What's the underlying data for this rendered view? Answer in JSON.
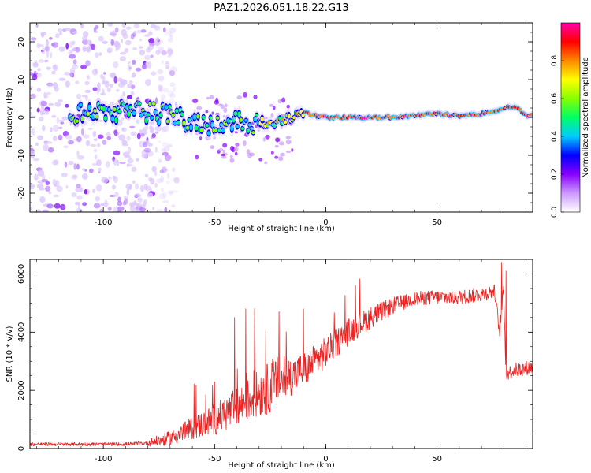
{
  "title": "PAZ1.2026.051.18.22.G13",
  "chart_data": [
    {
      "type": "heatmap",
      "name": "spectrogram",
      "xlabel": "Height of straight line (km)",
      "ylabel": "Frequency (Hz)",
      "xlim": [
        -133,
        93
      ],
      "ylim": [
        -25,
        25
      ],
      "xticks": [
        -100,
        -50,
        0,
        50
      ],
      "yticks": [
        -20,
        -10,
        0,
        10,
        20
      ],
      "xtick_labels": [
        "-100",
        "-50",
        "0",
        "50"
      ],
      "ytick_labels": [
        "-20",
        "-10",
        "0",
        "10",
        "20"
      ],
      "colorbar": {
        "label": "Normalized spectral amplitude",
        "range": [
          0,
          1
        ],
        "ticks": [
          0.0,
          0.2,
          0.4,
          0.6,
          0.8
        ],
        "tick_labels": [
          "0.0",
          "0.2",
          "0.4",
          "0.6",
          "0.8"
        ],
        "colors": [
          "#ffffff",
          "#cc99ff",
          "#8800ff",
          "#0000ff",
          "#00ccff",
          "#00ff66",
          "#88ff00",
          "#ffff00",
          "#ff8800",
          "#ff0000",
          "#ff00aa"
        ]
      },
      "ridge_frequency": {
        "x": [
          -115,
          -100,
          -80,
          -70,
          -60,
          -50,
          -45,
          -40,
          -35,
          -30,
          -25,
          -20,
          -15,
          -10,
          -5,
          0,
          10,
          20,
          30,
          40,
          50,
          60,
          70,
          75,
          80,
          85,
          90
        ],
        "y": [
          1,
          1.5,
          1.5,
          0.5,
          -1,
          -2,
          -1,
          -1,
          -2,
          -1,
          -2,
          -1,
          0,
          1.5,
          0.5,
          0,
          0,
          0,
          0,
          0.5,
          1,
          0.5,
          1,
          1.5,
          2.5,
          3,
          0.5
        ]
      },
      "noise_region_x": [
        -133,
        -75
      ]
    },
    {
      "type": "line",
      "name": "snr",
      "xlabel": "Height of straight line (km)",
      "ylabel": "SNR (10 * v/v)",
      "xlim": [
        -133,
        93
      ],
      "ylim": [
        0,
        6500
      ],
      "xticks": [
        -100,
        -50,
        0,
        50
      ],
      "yticks": [
        0,
        2000,
        4000,
        6000
      ],
      "xtick_labels": [
        "-100",
        "-50",
        "0",
        "50"
      ],
      "ytick_labels": [
        "0",
        "2000",
        "4000",
        "6000"
      ],
      "color": "#ee2222",
      "trend": {
        "x": [
          -133,
          -90,
          -80,
          -70,
          -60,
          -50,
          -40,
          -30,
          -20,
          -10,
          0,
          10,
          20,
          30,
          40,
          50,
          60,
          70,
          76,
          78,
          80,
          81,
          82,
          85,
          93
        ],
        "y": [
          150,
          150,
          200,
          350,
          700,
          1000,
          1400,
          1900,
          2300,
          2700,
          3300,
          4000,
          4500,
          4900,
          5150,
          5200,
          5200,
          5300,
          5400,
          4000,
          5500,
          2500,
          2600,
          2700,
          2800
        ]
      },
      "spikes": [
        {
          "x": -50,
          "y": 2300
        },
        {
          "x": -41,
          "y": 4500
        },
        {
          "x": -36,
          "y": 4800
        },
        {
          "x": -32,
          "y": 4800
        },
        {
          "x": -27,
          "y": 4100
        },
        {
          "x": -21,
          "y": 4700
        },
        {
          "x": -10,
          "y": 4800
        },
        {
          "x": 79,
          "y": 6400
        },
        {
          "x": 81,
          "y": 6100
        }
      ]
    }
  ]
}
